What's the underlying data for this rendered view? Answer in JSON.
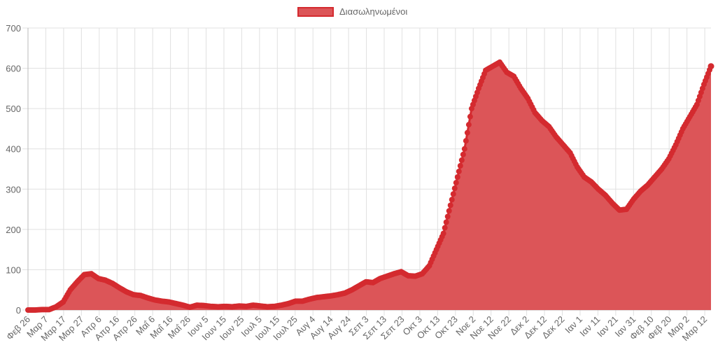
{
  "legend": {
    "label": "Διασωληνωμένοι",
    "fill_color": "#dc5558",
    "border_color": "#d42a2f"
  },
  "chart_data": {
    "type": "area",
    "title": "",
    "xlabel": "",
    "ylabel": "",
    "ylim": [
      0,
      700
    ],
    "yticks": [
      0,
      100,
      200,
      300,
      400,
      500,
      600,
      700
    ],
    "grid": true,
    "legend_position": "top",
    "x_tick_labels": [
      "Φεβ 26",
      "Μαρ 7",
      "Μαρ 17",
      "Μαρ 27",
      "Απρ 6",
      "Απρ 16",
      "Απρ 26",
      "Μαΐ 6",
      "Μαΐ 16",
      "Μαΐ 26",
      "Ιουν 5",
      "Ιουν 15",
      "Ιουν 25",
      "Ιουλ 5",
      "Ιουλ 15",
      "Ιουλ 25",
      "Αυγ 4",
      "Αυγ 14",
      "Αυγ 24",
      "Σεπ 3",
      "Σεπ 13",
      "Σεπ 23",
      "Οκτ 3",
      "Οκτ 13",
      "Οκτ 23",
      "Νοε 2",
      "Νοε 12",
      "Νοε 22",
      "Δεκ 2",
      "Δεκ 12",
      "Δεκ 22",
      "Ιαν 1",
      "Ιαν 11",
      "Ιαν 21",
      "Ιαν 31",
      "Φεβ 10",
      "Φεβ 20",
      "Μαρ 2",
      "Μαρ 12"
    ],
    "series": [
      {
        "name": "Διασωληνωμένοι",
        "day_step": 5,
        "start_label": "Φεβ 26",
        "values": [
          0,
          0,
          1,
          1,
          8,
          20,
          50,
          70,
          88,
          90,
          78,
          74,
          66,
          55,
          45,
          38,
          36,
          30,
          25,
          22,
          20,
          16,
          12,
          7,
          12,
          11,
          9,
          8,
          9,
          8,
          10,
          9,
          12,
          10,
          8,
          9,
          12,
          16,
          22,
          22,
          27,
          31,
          33,
          35,
          38,
          42,
          50,
          60,
          70,
          68,
          78,
          84,
          90,
          95,
          85,
          84,
          90,
          110,
          150,
          190,
          260,
          330,
          400,
          500,
          550,
          595,
          605,
          615,
          590,
          580,
          550,
          525,
          490,
          470,
          455,
          430,
          410,
          390,
          355,
          330,
          318,
          300,
          285,
          265,
          248,
          250,
          275,
          295,
          310,
          330,
          350,
          375,
          410,
          450,
          480,
          510,
          560,
          605
        ]
      }
    ]
  }
}
